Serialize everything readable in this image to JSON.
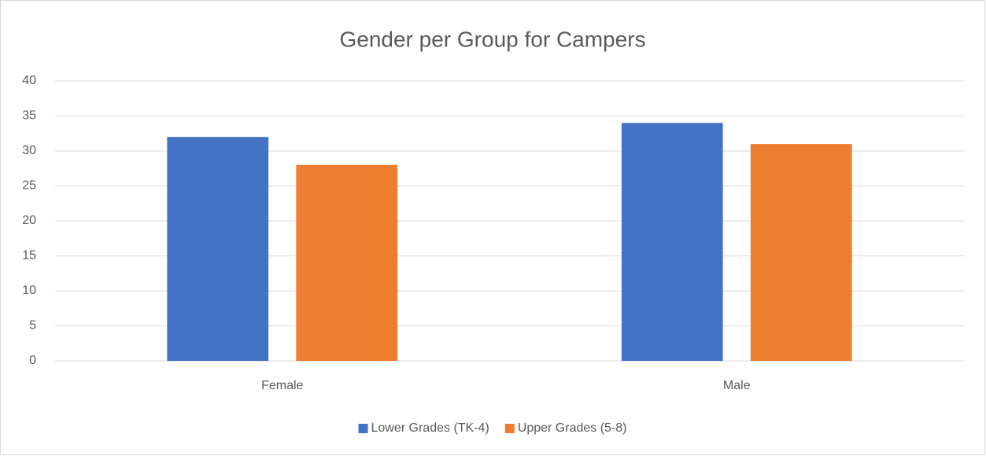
{
  "chart_data": {
    "type": "bar",
    "title": "Gender per Group for Campers",
    "categories": [
      "Female",
      "Male"
    ],
    "series": [
      {
        "name": "Lower Grades (TK-4)",
        "color": "#4472c4",
        "values": [
          32,
          34
        ]
      },
      {
        "name": "Upper Grades (5-8)",
        "color": "#ed7d31",
        "values": [
          28,
          31
        ]
      }
    ],
    "ylim": [
      0,
      40
    ],
    "yticks": [
      0,
      5,
      10,
      15,
      20,
      25,
      30,
      35,
      40
    ],
    "grid": true,
    "legend": "bottom"
  }
}
